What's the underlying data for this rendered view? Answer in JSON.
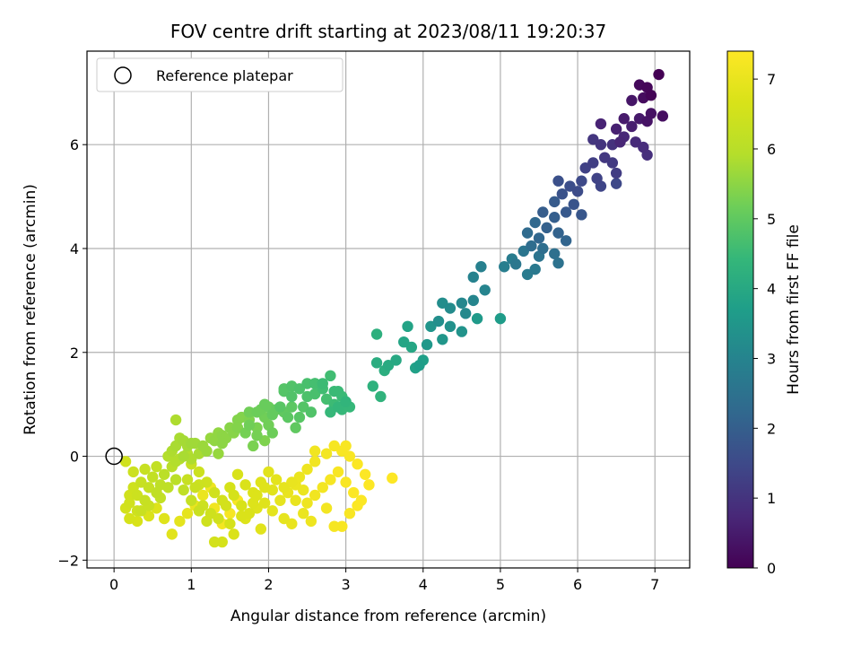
{
  "chart_data": {
    "type": "scatter",
    "title": "FOV centre drift starting at 2023/08/11 19:20:37",
    "xlabel": "Angular distance from reference (arcmin)",
    "ylabel": "Rotation from reference (arcmin)",
    "xlim": [
      -0.35,
      7.45
    ],
    "ylim": [
      -2.15,
      7.8
    ],
    "xticks": [
      0,
      1,
      2,
      3,
      4,
      5,
      6,
      7
    ],
    "yticks": [
      -2,
      0,
      2,
      4,
      6
    ],
    "grid": true,
    "legend": {
      "placement": "top-left",
      "entries": [
        "Reference platepar"
      ]
    },
    "reference_point": {
      "x": 0,
      "y": 0
    },
    "colorbar": {
      "label": "Hours from first FF file",
      "range": [
        0,
        7.4
      ],
      "ticks": [
        0,
        1,
        2,
        3,
        4,
        5,
        6,
        7
      ],
      "colormap": "viridis"
    },
    "points": [
      [
        7.05,
        7.35,
        0.0
      ],
      [
        6.95,
        6.95,
        0.05
      ],
      [
        6.9,
        7.1,
        0.1
      ],
      [
        6.8,
        7.15,
        0.15
      ],
      [
        6.85,
        6.9,
        0.2
      ],
      [
        7.1,
        6.55,
        0.25
      ],
      [
        6.95,
        6.6,
        0.3
      ],
      [
        6.9,
        6.45,
        0.35
      ],
      [
        6.7,
        6.85,
        0.4
      ],
      [
        6.8,
        6.5,
        0.45
      ],
      [
        6.6,
        6.5,
        0.5
      ],
      [
        6.7,
        6.35,
        0.55
      ],
      [
        6.5,
        6.3,
        0.6
      ],
      [
        6.3,
        6.4,
        0.65
      ],
      [
        6.55,
        6.05,
        0.7
      ],
      [
        6.6,
        6.15,
        0.75
      ],
      [
        6.75,
        6.05,
        0.8
      ],
      [
        6.85,
        5.95,
        0.85
      ],
      [
        6.9,
        5.8,
        0.9
      ],
      [
        6.45,
        6.0,
        0.95
      ],
      [
        6.3,
        6.0,
        1.0
      ],
      [
        6.2,
        6.1,
        1.05
      ],
      [
        6.35,
        5.75,
        1.1
      ],
      [
        6.45,
        5.65,
        1.15
      ],
      [
        6.5,
        5.45,
        1.2
      ],
      [
        6.2,
        5.65,
        1.25
      ],
      [
        6.1,
        5.55,
        1.3
      ],
      [
        6.25,
        5.35,
        1.35
      ],
      [
        6.3,
        5.2,
        1.4
      ],
      [
        6.5,
        5.25,
        1.45
      ],
      [
        6.05,
        5.3,
        1.5
      ],
      [
        6.0,
        5.1,
        1.55
      ],
      [
        5.9,
        5.2,
        1.6
      ],
      [
        5.75,
        5.3,
        1.65
      ],
      [
        5.8,
        5.05,
        1.7
      ],
      [
        5.95,
        4.85,
        1.75
      ],
      [
        6.05,
        4.65,
        1.8
      ],
      [
        5.85,
        4.7,
        1.85
      ],
      [
        5.7,
        4.9,
        1.9
      ],
      [
        5.55,
        4.7,
        1.95
      ],
      [
        5.7,
        4.6,
        2.0
      ],
      [
        5.6,
        4.4,
        2.05
      ],
      [
        5.75,
        4.3,
        2.1
      ],
      [
        5.85,
        4.15,
        2.15
      ],
      [
        5.5,
        4.2,
        2.2
      ],
      [
        5.45,
        4.5,
        2.25
      ],
      [
        5.35,
        4.3,
        2.3
      ],
      [
        5.4,
        4.05,
        2.35
      ],
      [
        5.55,
        4.0,
        2.4
      ],
      [
        5.7,
        3.9,
        2.45
      ],
      [
        5.75,
        3.72,
        2.5
      ],
      [
        5.5,
        3.85,
        2.55
      ],
      [
        5.3,
        3.95,
        2.6
      ],
      [
        5.2,
        3.7,
        2.65
      ],
      [
        5.45,
        3.6,
        2.7
      ],
      [
        5.35,
        3.5,
        2.75
      ],
      [
        5.15,
        3.8,
        2.8
      ],
      [
        5.05,
        3.65,
        2.85
      ],
      [
        4.75,
        3.65,
        2.9
      ],
      [
        4.65,
        3.45,
        2.95
      ],
      [
        4.8,
        3.2,
        3.0
      ],
      [
        4.65,
        3.0,
        3.05
      ],
      [
        4.5,
        2.95,
        3.1
      ],
      [
        4.55,
        2.75,
        3.15
      ],
      [
        4.35,
        2.85,
        3.2
      ],
      [
        4.25,
        2.95,
        3.25
      ],
      [
        4.2,
        2.6,
        3.3
      ],
      [
        4.35,
        2.5,
        3.35
      ],
      [
        4.5,
        2.4,
        3.4
      ],
      [
        4.1,
        2.5,
        3.45
      ],
      [
        4.25,
        2.25,
        3.5
      ],
      [
        4.05,
        2.15,
        3.55
      ],
      [
        4.7,
        2.65,
        3.6
      ],
      [
        5.0,
        2.65,
        3.65
      ],
      [
        3.95,
        1.75,
        3.7
      ],
      [
        4.0,
        1.85,
        3.75
      ],
      [
        3.9,
        1.7,
        3.8
      ],
      [
        3.8,
        2.5,
        3.85
      ],
      [
        3.75,
        2.2,
        3.9
      ],
      [
        3.85,
        2.1,
        3.95
      ],
      [
        3.65,
        1.85,
        4.0
      ],
      [
        3.55,
        1.75,
        4.05
      ],
      [
        3.4,
        1.8,
        4.1
      ],
      [
        3.5,
        1.65,
        4.15
      ],
      [
        3.4,
        2.35,
        4.2
      ],
      [
        3.35,
        1.35,
        4.25
      ],
      [
        3.45,
        1.15,
        4.3
      ],
      [
        3.0,
        1.05,
        4.35
      ],
      [
        2.9,
        0.95,
        4.4
      ],
      [
        2.8,
        0.85,
        4.45
      ],
      [
        2.85,
        1.25,
        4.5
      ],
      [
        2.7,
        1.4,
        4.55
      ],
      [
        2.8,
        1.55,
        4.6
      ],
      [
        2.6,
        1.4,
        4.65
      ],
      [
        2.5,
        1.4,
        4.7
      ],
      [
        2.4,
        1.3,
        4.75
      ],
      [
        2.3,
        1.15,
        4.8
      ],
      [
        2.2,
        1.3,
        4.85
      ],
      [
        2.15,
        0.95,
        4.9
      ],
      [
        2.25,
        0.75,
        4.95
      ],
      [
        2.35,
        0.55,
        5.0
      ],
      [
        2.05,
        0.8,
        5.05
      ],
      [
        1.95,
        1.0,
        5.1
      ],
      [
        1.85,
        0.85,
        5.15
      ],
      [
        1.75,
        0.6,
        5.2
      ],
      [
        1.7,
        0.45,
        5.25
      ],
      [
        1.8,
        0.2,
        5.3
      ],
      [
        1.95,
        0.3,
        5.35
      ],
      [
        1.6,
        0.7,
        5.4
      ],
      [
        1.5,
        0.55,
        5.45
      ],
      [
        1.4,
        0.4,
        5.5
      ],
      [
        1.3,
        0.3,
        5.55
      ],
      [
        1.35,
        0.05,
        5.6
      ],
      [
        1.2,
        0.1,
        5.65
      ],
      [
        1.0,
        0.25,
        5.7
      ],
      [
        0.9,
        0.3,
        5.75
      ],
      [
        0.8,
        0.2,
        5.8
      ],
      [
        0.8,
        0.7,
        5.85
      ],
      [
        0.95,
        0.05,
        5.9
      ],
      [
        0.85,
        -0.05,
        5.95
      ],
      [
        0.75,
        -0.2,
        6.0
      ],
      [
        0.65,
        -0.35,
        6.05
      ],
      [
        0.6,
        -0.55,
        6.1
      ],
      [
        0.55,
        -0.7,
        6.15
      ],
      [
        0.5,
        -0.4,
        6.2
      ],
      [
        0.45,
        -0.6,
        6.25
      ],
      [
        0.4,
        -0.85,
        6.3
      ],
      [
        0.35,
        -1.05,
        6.35
      ],
      [
        0.3,
        -0.75,
        6.4
      ],
      [
        0.25,
        -0.6,
        6.45
      ],
      [
        0.2,
        -0.9,
        6.5
      ],
      [
        0.15,
        -1.0,
        6.55
      ],
      [
        0.2,
        -1.2,
        6.6
      ],
      [
        0.3,
        -1.25,
        6.65
      ],
      [
        0.45,
        -1.15,
        6.7
      ],
      [
        0.55,
        -1.0,
        6.75
      ],
      [
        0.65,
        -1.2,
        6.8
      ],
      [
        0.75,
        -1.5,
        6.85
      ],
      [
        0.85,
        -1.25,
        6.9
      ],
      [
        0.95,
        -1.1,
        6.95
      ],
      [
        1.05,
        -0.95,
        7.0
      ],
      [
        1.15,
        -0.75,
        7.05
      ],
      [
        1.25,
        -0.6,
        7.1
      ],
      [
        1.3,
        -1.0,
        7.15
      ],
      [
        1.4,
        -1.3,
        7.2
      ],
      [
        1.5,
        -1.1,
        7.25
      ],
      [
        1.6,
        -0.85,
        7.3
      ],
      [
        3.6,
        -0.42,
        7.4
      ],
      [
        0.15,
        -0.1,
        6.5
      ],
      [
        0.25,
        -0.3,
        6.4
      ],
      [
        0.4,
        -0.25,
        6.3
      ],
      [
        0.55,
        -0.2,
        6.2
      ],
      [
        0.35,
        -0.5,
        6.3
      ],
      [
        0.2,
        -0.75,
        6.5
      ],
      [
        0.3,
        -1.05,
        6.45
      ],
      [
        0.45,
        -0.95,
        6.35
      ],
      [
        0.6,
        -0.8,
        6.2
      ],
      [
        0.7,
        -0.6,
        6.1
      ],
      [
        0.8,
        -0.45,
        6.05
      ],
      [
        0.9,
        -0.65,
        6.15
      ],
      [
        1.0,
        -0.85,
        6.25
      ],
      [
        1.1,
        -1.05,
        6.35
      ],
      [
        1.2,
        -1.25,
        6.45
      ],
      [
        1.3,
        -1.65,
        6.55
      ],
      [
        1.4,
        -1.65,
        6.6
      ],
      [
        1.55,
        -1.5,
        6.7
      ],
      [
        1.7,
        -1.2,
        6.75
      ],
      [
        1.85,
        -1.0,
        6.8
      ],
      [
        1.9,
        -1.4,
        6.85
      ],
      [
        2.05,
        -1.05,
        6.9
      ],
      [
        2.15,
        -0.85,
        6.95
      ],
      [
        2.25,
        -0.7,
        7.0
      ],
      [
        2.35,
        -0.55,
        7.05
      ],
      [
        2.2,
        -1.2,
        6.95
      ],
      [
        2.3,
        -1.3,
        7.0
      ],
      [
        2.45,
        -1.1,
        7.05
      ],
      [
        2.5,
        -0.9,
        7.1
      ],
      [
        2.6,
        -0.75,
        7.15
      ],
      [
        2.7,
        -0.6,
        7.2
      ],
      [
        2.8,
        -0.45,
        7.25
      ],
      [
        2.9,
        -0.3,
        7.3
      ],
      [
        3.0,
        -0.5,
        7.3
      ],
      [
        3.1,
        -0.7,
        7.35
      ],
      [
        3.2,
        -0.85,
        7.35
      ],
      [
        3.3,
        -0.55,
        7.38
      ],
      [
        2.55,
        -1.25,
        7.1
      ],
      [
        2.75,
        -1.0,
        7.2
      ],
      [
        2.85,
        -1.35,
        7.25
      ],
      [
        2.95,
        -1.35,
        7.3
      ],
      [
        3.05,
        -1.1,
        7.3
      ],
      [
        3.15,
        -0.95,
        7.35
      ],
      [
        3.25,
        -0.35,
        7.38
      ],
      [
        3.15,
        -0.15,
        7.35
      ],
      [
        3.05,
        0.0,
        7.3
      ],
      [
        2.95,
        0.1,
        7.3
      ],
      [
        2.85,
        0.2,
        7.25
      ],
      [
        3.0,
        0.2,
        7.3
      ],
      [
        2.75,
        0.05,
        7.2
      ],
      [
        2.6,
        -0.1,
        7.15
      ],
      [
        2.5,
        -0.25,
        7.1
      ],
      [
        2.4,
        -0.4,
        7.05
      ],
      [
        2.3,
        -0.5,
        7.0
      ],
      [
        2.6,
        0.1,
        7.15
      ],
      [
        2.45,
        -0.65,
        7.05
      ],
      [
        2.35,
        -0.85,
        7.0
      ],
      [
        2.2,
        -0.6,
        6.95
      ],
      [
        2.1,
        -0.45,
        6.9
      ],
      [
        2.0,
        -0.3,
        6.85
      ],
      [
        1.9,
        -0.5,
        6.8
      ],
      [
        1.8,
        -0.7,
        6.75
      ],
      [
        1.7,
        -0.55,
        6.7
      ],
      [
        1.6,
        -0.35,
        6.65
      ],
      [
        1.5,
        -0.6,
        6.6
      ],
      [
        1.4,
        -0.85,
        6.55
      ],
      [
        1.3,
        -0.7,
        6.5
      ],
      [
        1.2,
        -0.5,
        6.45
      ],
      [
        1.1,
        -0.3,
        6.4
      ],
      [
        1.0,
        -0.15,
        6.3
      ],
      [
        0.95,
        -0.45,
        6.3
      ],
      [
        1.05,
        -0.6,
        6.35
      ],
      [
        1.15,
        -0.95,
        6.4
      ],
      [
        1.25,
        -1.1,
        6.45
      ],
      [
        1.35,
        -1.2,
        6.5
      ],
      [
        1.45,
        -0.95,
        6.55
      ],
      [
        1.55,
        -0.75,
        6.6
      ],
      [
        1.65,
        -0.95,
        6.65
      ],
      [
        1.75,
        -1.1,
        6.7
      ],
      [
        1.85,
        -0.75,
        6.75
      ],
      [
        1.95,
        -0.6,
        6.8
      ],
      [
        2.05,
        -0.65,
        6.85
      ],
      [
        1.95,
        -0.9,
        6.8
      ],
      [
        1.8,
        -0.9,
        6.75
      ],
      [
        1.65,
        -1.15,
        6.7
      ],
      [
        1.5,
        -1.3,
        6.6
      ],
      [
        1.1,
        -0.55,
        6.4
      ],
      [
        0.85,
        0.35,
        5.8
      ],
      [
        0.95,
        0.2,
        5.75
      ],
      [
        0.9,
        0.0,
        5.8
      ],
      [
        1.0,
        -0.05,
        5.85
      ],
      [
        1.1,
        0.05,
        5.8
      ],
      [
        0.75,
        0.1,
        5.85
      ],
      [
        0.8,
        -0.1,
        5.9
      ],
      [
        0.7,
        0.0,
        5.9
      ],
      [
        1.05,
        0.25,
        5.7
      ],
      [
        1.15,
        0.2,
        5.65
      ],
      [
        1.25,
        0.35,
        5.6
      ],
      [
        1.35,
        0.45,
        5.55
      ],
      [
        1.45,
        0.35,
        5.5
      ],
      [
        1.55,
        0.45,
        5.45
      ],
      [
        1.65,
        0.75,
        5.4
      ],
      [
        1.75,
        0.7,
        5.35
      ],
      [
        1.85,
        0.55,
        5.3
      ],
      [
        1.95,
        0.75,
        5.2
      ],
      [
        2.0,
        0.6,
        5.2
      ],
      [
        2.05,
        0.45,
        5.15
      ],
      [
        1.85,
        0.4,
        5.25
      ],
      [
        2.1,
        0.9,
        5.05
      ],
      [
        2.2,
        0.85,
        5.0
      ],
      [
        2.3,
        0.95,
        4.95
      ],
      [
        2.4,
        0.75,
        4.9
      ],
      [
        2.45,
        0.95,
        4.85
      ],
      [
        2.55,
        0.85,
        4.8
      ],
      [
        2.2,
        1.25,
        4.85
      ],
      [
        2.3,
        1.35,
        4.8
      ],
      [
        2.5,
        1.15,
        4.75
      ],
      [
        2.6,
        1.2,
        4.7
      ],
      [
        2.75,
        1.1,
        4.65
      ],
      [
        2.85,
        1.0,
        4.55
      ],
      [
        2.95,
        1.15,
        4.5
      ],
      [
        3.05,
        0.95,
        4.45
      ],
      [
        2.95,
        0.9,
        4.45
      ],
      [
        2.7,
        1.3,
        4.6
      ],
      [
        2.6,
        1.4,
        4.65
      ],
      [
        2.9,
        1.25,
        4.5
      ],
      [
        2.0,
        0.95,
        5.1
      ],
      [
        1.9,
        0.9,
        5.15
      ],
      [
        1.75,
        0.85,
        5.2
      ],
      [
        1.6,
        0.55,
        5.4
      ],
      [
        1.4,
        0.25,
        5.5
      ]
    ]
  }
}
